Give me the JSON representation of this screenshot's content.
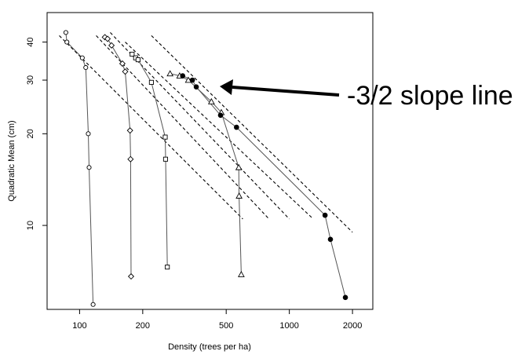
{
  "chart_data": {
    "type": "scatter",
    "title": "",
    "xlabel": "Density (trees per ha)",
    "ylabel": "Quadratic Mean (cm)",
    "x_scale": "log",
    "y_scale": "log",
    "xlim": [
      70,
      2500
    ],
    "ylim": [
      5.3,
      50
    ],
    "x_ticks": [
      100,
      200,
      500,
      1000,
      2000
    ],
    "x_tick_labels": [
      "100",
      "200",
      "500",
      "1000",
      "2000"
    ],
    "y_ticks": [
      10,
      20,
      30,
      40
    ],
    "y_tick_labels": [
      "10",
      "20",
      "30",
      "40"
    ],
    "grid": false,
    "legend": "none",
    "series": [
      {
        "marker": "circle-open",
        "points": [
          [
            86,
            43
          ],
          [
            87,
            40
          ],
          [
            103,
            35.5
          ],
          [
            107,
            33
          ],
          [
            110,
            20
          ],
          [
            111,
            15.5
          ],
          [
            116,
            5.5
          ]
        ]
      },
      {
        "marker": "diamond-open",
        "points": [
          [
            132,
            41.5
          ],
          [
            136,
            41
          ],
          [
            142,
            39
          ],
          [
            160,
            34
          ],
          [
            165,
            32
          ],
          [
            174,
            20.5
          ],
          [
            175,
            16.5
          ],
          [
            176,
            6.8
          ]
        ]
      },
      {
        "marker": "square-open",
        "points": [
          [
            178,
            36.5
          ],
          [
            185,
            35.5
          ],
          [
            190,
            35
          ],
          [
            220,
            29.5
          ],
          [
            256,
            19.5
          ],
          [
            257,
            16.5
          ],
          [
            262,
            7.3
          ]
        ]
      },
      {
        "marker": "triangle-open",
        "points": [
          [
            270,
            31.5
          ],
          [
            300,
            31
          ],
          [
            330,
            30
          ],
          [
            425,
            25.5
          ],
          [
            474,
            23.5
          ],
          [
            574,
            15.5
          ],
          [
            576,
            12.5
          ],
          [
            590,
            6.9
          ]
        ]
      },
      {
        "marker": "circle-filled",
        "points": [
          [
            310,
            31
          ],
          [
            345,
            30
          ],
          [
            360,
            28.5
          ],
          [
            470,
            23
          ],
          [
            560,
            21
          ],
          [
            1480,
            10.8
          ],
          [
            1570,
            9
          ],
          [
            1850,
            5.8
          ]
        ]
      }
    ],
    "reference_lines": [
      {
        "kind": "dashed",
        "from": [
          80,
          42
        ],
        "to": [
          600,
          10.5
        ]
      },
      {
        "kind": "dashed",
        "from": [
          120,
          42
        ],
        "to": [
          800,
          10.5
        ]
      },
      {
        "kind": "dashed",
        "from": [
          140,
          43
        ],
        "to": [
          1000,
          10.5
        ]
      },
      {
        "kind": "dashed",
        "from": [
          165,
          40
        ],
        "to": [
          1300,
          10.5
        ]
      },
      {
        "kind": "dashed",
        "from": [
          220,
          42
        ],
        "to": [
          2000,
          9.5
        ]
      }
    ],
    "annotations": [
      {
        "text": "-3/2 slope line",
        "points_to": [
          450,
          28
        ]
      }
    ]
  }
}
